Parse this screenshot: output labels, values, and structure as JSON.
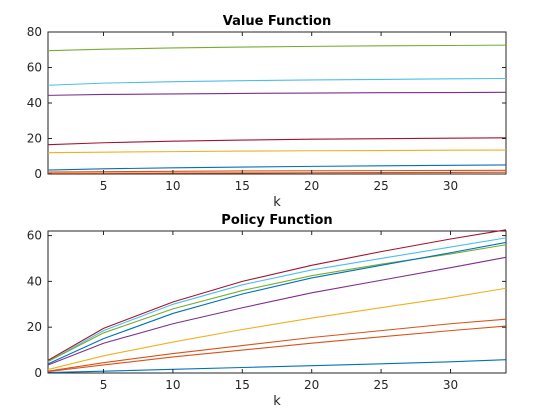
{
  "chart_data": [
    {
      "type": "line",
      "title": "Value Function",
      "xlabel": "k",
      "ylabel": "",
      "xlim": [
        1,
        34
      ],
      "ylim": [
        0,
        80
      ],
      "xticks": [
        5,
        10,
        15,
        20,
        25,
        30
      ],
      "yticks": [
        0,
        20,
        40,
        60,
        80
      ],
      "grid": false,
      "x": [
        1,
        5,
        10,
        15,
        20,
        25,
        30,
        34
      ],
      "series": [
        {
          "color": "#77AC30",
          "values": [
            69.5,
            70.3,
            71.0,
            71.5,
            71.9,
            72.2,
            72.4,
            72.6
          ]
        },
        {
          "color": "#4DBEEE",
          "values": [
            50.0,
            51.2,
            52.0,
            52.6,
            53.0,
            53.3,
            53.6,
            53.8
          ]
        },
        {
          "color": "#7E2F8E",
          "values": [
            44.3,
            44.8,
            45.1,
            45.4,
            45.6,
            45.8,
            45.9,
            46.0
          ]
        },
        {
          "color": "#A2142F",
          "values": [
            16.5,
            17.6,
            18.5,
            19.1,
            19.6,
            19.9,
            20.2,
            20.4
          ]
        },
        {
          "color": "#EDB120",
          "values": [
            12.0,
            12.3,
            12.6,
            12.9,
            13.1,
            13.2,
            13.4,
            13.5
          ]
        },
        {
          "color": "#0072BD",
          "values": [
            2.2,
            2.9,
            3.5,
            3.9,
            4.3,
            4.6,
            4.9,
            5.1
          ]
        },
        {
          "color": "#D95319",
          "values": [
            1.1,
            1.3,
            1.5,
            1.7,
            1.8,
            1.9,
            2.0,
            2.1
          ]
        },
        {
          "color": "#D95319",
          "values": [
            0.3,
            0.4,
            0.5,
            0.6,
            0.7,
            0.8,
            0.9,
            1.0
          ]
        }
      ]
    },
    {
      "type": "line",
      "title": "Policy Function",
      "xlabel": "k",
      "ylabel": "",
      "xlim": [
        1,
        34
      ],
      "ylim": [
        0,
        62
      ],
      "xticks": [
        5,
        10,
        15,
        20,
        25,
        30
      ],
      "yticks": [
        0,
        20,
        40,
        60
      ],
      "grid": false,
      "x": [
        1,
        5,
        10,
        15,
        20,
        25,
        30,
        34
      ],
      "series": [
        {
          "color": "#A2142F",
          "values": [
            5.5,
            19.5,
            31.0,
            40.0,
            47.0,
            53.0,
            58.5,
            62.5
          ]
        },
        {
          "color": "#4DBEEE",
          "values": [
            5.0,
            18.5,
            30.0,
            38.5,
            45.0,
            50.0,
            55.0,
            59.0
          ]
        },
        {
          "color": "#77AC30",
          "values": [
            5.0,
            17.5,
            28.0,
            36.0,
            42.5,
            47.5,
            52.0,
            56.0
          ]
        },
        {
          "color": "#0072BD",
          "values": [
            4.0,
            15.0,
            26.0,
            34.5,
            41.5,
            47.0,
            52.5,
            57.0
          ]
        },
        {
          "color": "#7E2F8E",
          "values": [
            3.5,
            13.0,
            21.5,
            28.5,
            35.0,
            40.5,
            46.0,
            50.5
          ]
        },
        {
          "color": "#EDB120",
          "values": [
            1.5,
            7.5,
            13.5,
            19.0,
            24.0,
            28.5,
            33.0,
            37.0
          ]
        },
        {
          "color": "#D95319",
          "values": [
            0.8,
            4.5,
            8.5,
            12.0,
            15.5,
            18.5,
            21.5,
            23.5
          ]
        },
        {
          "color": "#D95319",
          "values": [
            0.6,
            3.5,
            7.0,
            10.0,
            13.0,
            15.8,
            18.5,
            20.5
          ]
        },
        {
          "color": "#0072BD",
          "values": [
            0.2,
            0.8,
            1.6,
            2.4,
            3.2,
            4.0,
            4.9,
            5.8
          ]
        }
      ]
    }
  ]
}
